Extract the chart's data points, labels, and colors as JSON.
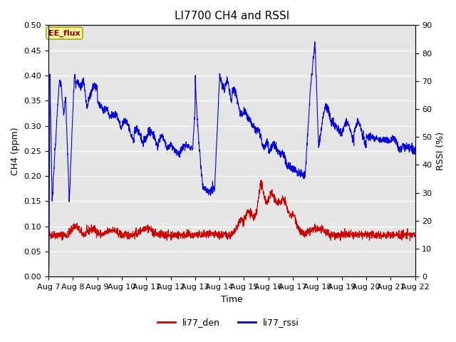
{
  "title": "LI7700 CH4 and RSSI",
  "xlabel": "Time",
  "ylabel_left": "CH4 (ppm)",
  "ylabel_right": "RSSI (%)",
  "ylim_left": [
    0.0,
    0.5
  ],
  "ylim_right": [
    0,
    90
  ],
  "yticks_left": [
    0.0,
    0.05,
    0.1,
    0.15,
    0.2,
    0.25,
    0.3,
    0.35,
    0.4,
    0.45,
    0.5
  ],
  "yticks_right": [
    0,
    10,
    20,
    30,
    40,
    50,
    60,
    70,
    80,
    90
  ],
  "xtick_labels": [
    "Aug 7",
    "Aug 8",
    "Aug 9",
    "Aug 10",
    "Aug 11",
    "Aug 12",
    "Aug 13",
    "Aug 14",
    "Aug 15",
    "Aug 16",
    "Aug 17",
    "Aug 18",
    "Aug 19",
    "Aug 20",
    "Aug 21",
    "Aug 22"
  ],
  "annotation_text": "EE_flux",
  "bg_color": "#e5e5e5",
  "line_color_ch4": "#cc0000",
  "line_color_rssi": "#0000dd",
  "legend_labels": [
    "li77_den",
    "li77_rssi"
  ],
  "legend_colors": [
    "#cc0000",
    "#0000dd"
  ],
  "title_fontsize": 11,
  "label_fontsize": 9,
  "tick_fontsize": 8
}
